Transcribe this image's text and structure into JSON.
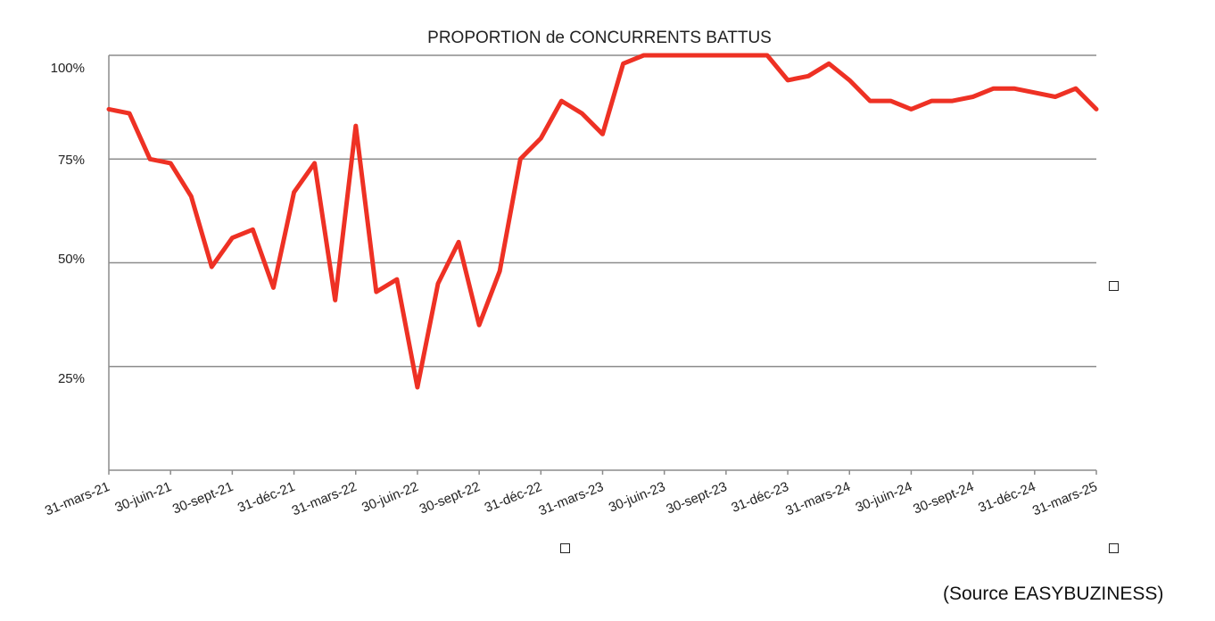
{
  "chart_data": {
    "type": "line",
    "title": "PROPORTION de CONCURRENTS BATTUS",
    "xlabel": "",
    "ylabel": "",
    "ylim": [
      0,
      100
    ],
    "grid": true,
    "y_ticks": [
      {
        "value": 100,
        "label": "100%"
      },
      {
        "value": 75,
        "label": "75%"
      },
      {
        "value": 50,
        "label": "50%"
      },
      {
        "value": 25,
        "label": "25%"
      }
    ],
    "x_tick_labels": [
      "31-mars-21",
      "30-juin-21",
      "30-sept-21",
      "31-déc-21",
      "31-mars-22",
      "30-juin-22",
      "30-sept-22",
      "31-déc-22",
      "31-mars-23",
      "30-juin-23",
      "30-sept-23",
      "31-déc-23",
      "31-mars-24",
      "30-juin-24",
      "30-sept-24",
      "31-déc-24",
      "31-mars-25"
    ],
    "series_color": "#ee3124",
    "series": [
      {
        "values": [
          87,
          86,
          75,
          74,
          66,
          49,
          56,
          58,
          44,
          67,
          74,
          41,
          83,
          43,
          46,
          20,
          45,
          55,
          35,
          48,
          75,
          80,
          89,
          86,
          81,
          98,
          100,
          100,
          100,
          100,
          100,
          100,
          100,
          94,
          95,
          98,
          94,
          89,
          89,
          87,
          89,
          89,
          90,
          92,
          92,
          91,
          90,
          92,
          87
        ]
      }
    ]
  },
  "source_text": "(Source EASYBUZINESS)"
}
